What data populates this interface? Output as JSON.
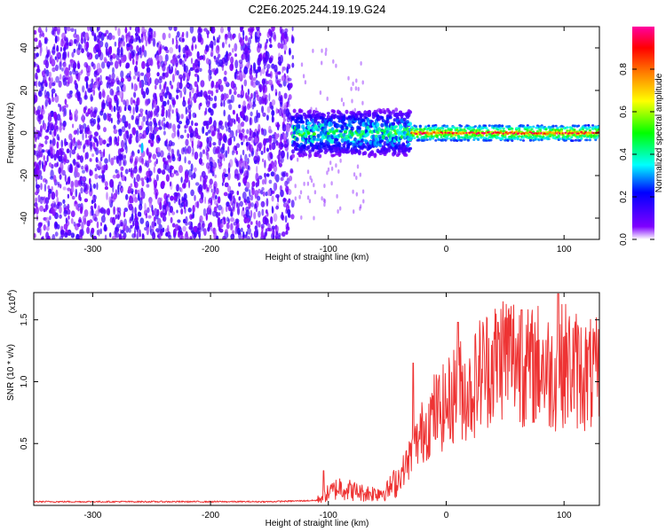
{
  "figure": {
    "title": "C2E6.2025.244.19.19.G24"
  },
  "chart_data": [
    {
      "type": "heatmap",
      "title": "C2E6.2025.244.19.19.G24",
      "xlabel": "Height of straight line (km)",
      "ylabel": "Frequency (Hz)",
      "xlim": [
        -350,
        130
      ],
      "ylim": [
        -50,
        50
      ],
      "xticks": [
        -300,
        -200,
        -100,
        0,
        100
      ],
      "yticks": [
        -40,
        -20,
        0,
        20,
        40
      ],
      "noise_region_x": [
        -350,
        -130
      ],
      "gap_region_x": [
        -130,
        -70
      ],
      "signal_band": {
        "x_start": -130,
        "x_end": 130,
        "center_frequency_hz": 0,
        "early_halfwidth_hz": 10,
        "late_halfwidth_hz": 4
      },
      "colorbar": {
        "label": "Normalized spectral amplitude",
        "range": [
          0.0,
          1.0
        ],
        "ticks": [
          0.0,
          0.2,
          0.4,
          0.6,
          0.8
        ],
        "tick_labels": [
          "0.0",
          "0.2",
          "0.4",
          "0.6",
          "0.8"
        ],
        "colormap": [
          "#ffffff",
          "#7f00ff",
          "#0000ff",
          "#00ffff",
          "#00ff00",
          "#ffff00",
          "#ff8000",
          "#ff0000",
          "#ff00a0"
        ]
      }
    },
    {
      "type": "line",
      "xlabel": "Height of straight line (km)",
      "ylabel": "SNR (10 * v/v)",
      "scale_label": "(x10",
      "scale_exp": "4",
      "scale_suffix": ")",
      "xlim": [
        -350,
        130
      ],
      "ylim": [
        0,
        1.72
      ],
      "xticks": [
        -300,
        -200,
        -100,
        0,
        100
      ],
      "yticks": [
        0.5,
        1.0,
        1.5
      ],
      "ytick_labels": [
        "0.5",
        "1.0",
        "1.5"
      ],
      "color": "#ee3333",
      "series": [
        {
          "name": "SNR",
          "x": [
            -350,
            -300,
            -250,
            -200,
            -150,
            -110,
            -100,
            -90,
            -80,
            -70,
            -60,
            -50,
            -40,
            -30,
            -20,
            -10,
            0,
            10,
            20,
            30,
            40,
            50,
            60,
            70,
            80,
            90,
            100,
            110,
            120,
            130
          ],
          "y": [
            0.03,
            0.03,
            0.03,
            0.03,
            0.03,
            0.04,
            0.1,
            0.15,
            0.12,
            0.1,
            0.1,
            0.12,
            0.22,
            0.4,
            0.6,
            0.75,
            0.8,
            0.95,
            0.9,
            1.1,
            1.15,
            1.25,
            1.2,
            1.1,
            1.15,
            1.05,
            1.15,
            1.1,
            1.05,
            1.05
          ]
        }
      ],
      "peaks": [
        {
          "x": -104,
          "y": 0.28
        },
        {
          "x": -28,
          "y": 1.15
        },
        {
          "x": 10,
          "y": 1.48
        },
        {
          "x": 44,
          "y": 1.48
        },
        {
          "x": 64,
          "y": 1.58
        },
        {
          "x": 95,
          "y": 1.71
        },
        {
          "x": 126,
          "y": 1.4
        }
      ]
    }
  ]
}
